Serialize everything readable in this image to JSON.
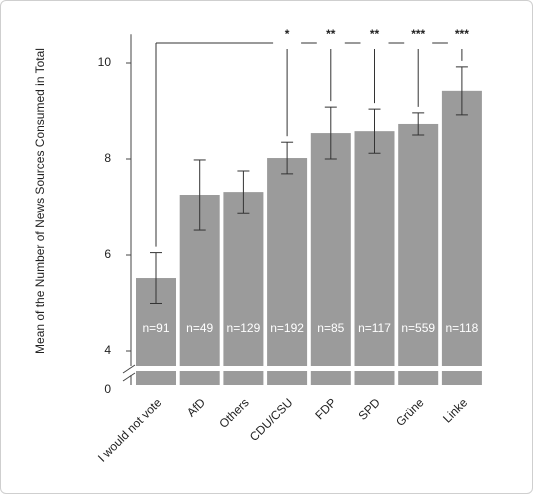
{
  "chart_data": {
    "type": "bar",
    "ylabel": "Mean of the Number of News Sources Consumed in Total",
    "categories": [
      "I would not vote",
      "AfD",
      "Others",
      "CDU/CSU",
      "FDP",
      "SPD",
      "Grüne",
      "Linke"
    ],
    "values": [
      5.52,
      7.25,
      7.31,
      8.02,
      8.54,
      8.58,
      8.73,
      9.42
    ],
    "errors": [
      0.53,
      0.73,
      0.44,
      0.33,
      0.54,
      0.46,
      0.23,
      0.5
    ],
    "n_labels": [
      "n=91",
      "n=49",
      "n=129",
      "n=192",
      "n=85",
      "n=117",
      "n=559",
      "n=118"
    ],
    "significance": [
      null,
      null,
      null,
      "*",
      "**",
      "**",
      "***",
      "***"
    ],
    "color": "#9b9b9b",
    "ylim": [
      4,
      10.6
    ],
    "yticks": [
      4,
      6,
      8,
      10
    ],
    "axis_break_tick": 0
  }
}
